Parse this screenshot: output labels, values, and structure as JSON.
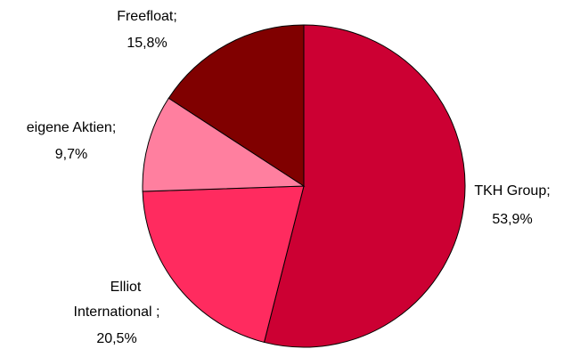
{
  "chart_data": {
    "type": "pie",
    "start_angle_deg": 0,
    "direction": "clockwise",
    "slices": [
      {
        "name": "TKH Group",
        "value": 53.9,
        "label_line1": "TKH Group;",
        "label_line2": "53,9%",
        "color": "#cc0033"
      },
      {
        "name": "Elliot International",
        "value": 20.5,
        "label_line1": "Elliot",
        "label_line2": "International ;",
        "label_line3": "20,5%",
        "color": "#ff2b5f"
      },
      {
        "name": "eigene Aktien",
        "value": 9.7,
        "label_line1": "eigene Aktien;",
        "label_line2": "9,7%",
        "color": "#ff7f9f"
      },
      {
        "name": "Freefloat",
        "value": 15.8,
        "label_line1": "Freefloat;",
        "label_line2": "15,8%",
        "color": "#800000"
      }
    ]
  }
}
